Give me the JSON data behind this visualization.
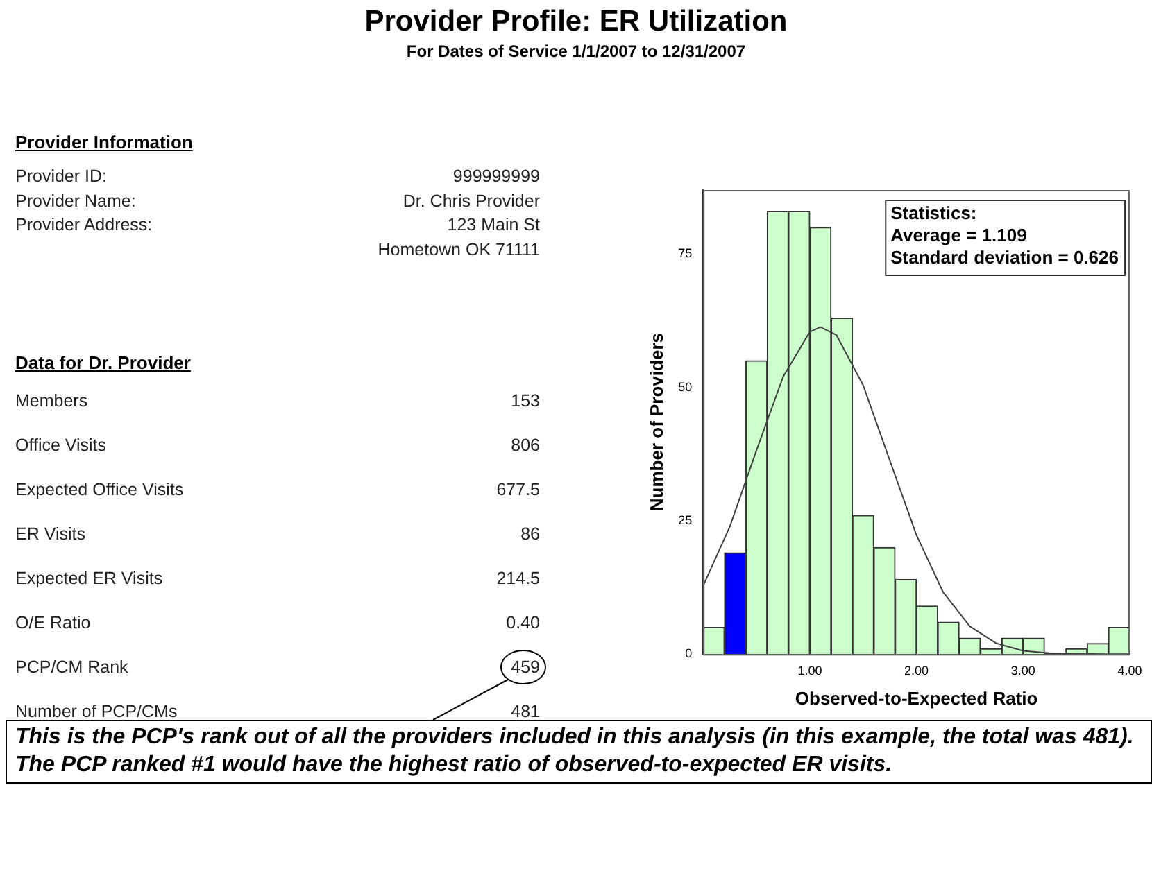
{
  "chart_data": [
    {
      "type": "other",
      "title": "Provider Profile: ER Utilization",
      "subtitle": "For Dates of Service 1/1/2007 to 12/31/2007",
      "categories": [
        null,
        null,
        null,
        null,
        "Members",
        "Office Visits",
        "Expected Office Visits",
        "ER Visits",
        "Expected ER Visits",
        "O/E Ratio",
        "PCP/CM Rank",
        "Number of PCP/CMs"
      ],
      "value_labels": [
        "999999999",
        "Dr. Chris Provider",
        "123 Main St",
        "Hometown OK 71111",
        "153",
        "806",
        "677.5",
        "86",
        "214.5",
        "0.40",
        "459",
        "481"
      ],
      "annotations": [
        "Provider Information",
        "Provider ID:",
        "Provider Name:",
        "Provider Address:",
        "Data for Dr. Provider",
        "This is the PCP's rank out of all the providers included in this analysis (in this example, the total was 481).  The PCP ranked #1 would have the highest ratio of observed-to-expected ER visits."
      ]
    },
    {
      "type": "histogram",
      "xlabel": "Observed-to-Expected Ratio",
      "ylabel": "Number of Providers",
      "bins": [
        0,
        0.2,
        0.4,
        0.6,
        0.8,
        1.0,
        1.2,
        1.4,
        1.6,
        1.8,
        2.0,
        2.2,
        2.4,
        2.6,
        2.8,
        3.0,
        3.2,
        3.4,
        3.6,
        3.8,
        4.0
      ],
      "values": [
        5,
        19,
        55,
        83,
        83,
        80,
        63,
        26,
        20,
        14,
        9,
        6,
        3,
        1,
        3,
        3,
        0,
        1,
        2,
        5
      ],
      "colors": [
        "#ccffcc",
        "#0000ff",
        "#ccffcc",
        "#ccffcc",
        "#ccffcc",
        "#ccffcc",
        "#ccffcc",
        "#ccffcc",
        "#ccffcc",
        "#ccffcc",
        "#ccffcc",
        "#ccffcc",
        "#ccffcc",
        "#ccffcc",
        "#ccffcc",
        "#ccffcc",
        "#ccffcc",
        "#ccffcc",
        "#ccffcc",
        "#ccffcc"
      ],
      "series": [
        {
          "type": "line",
          "color": "#404040",
          "x": [
            0,
            0.25,
            0.5,
            0.75,
            1.0,
            1.1,
            1.25,
            1.5,
            1.75,
            2.0,
            2.25,
            2.5,
            2.75,
            3.0,
            3.25,
            3.5,
            3.75,
            4.0
          ],
          "values": [
            12.8,
            23.9,
            38.2,
            52.0,
            60.4,
            61.3,
            59.8,
            50.4,
            36.3,
            22.3,
            11.6,
            5.2,
            2.0,
            0.6,
            0.2,
            0.1,
            0,
            0
          ]
        }
      ],
      "xlim": [
        0,
        4.0
      ],
      "xticks": [
        {
          "value": 1,
          "label": "1.00"
        },
        {
          "value": 2,
          "label": "2.00"
        },
        {
          "value": 3,
          "label": "3.00"
        },
        {
          "value": 4,
          "label": "4.00"
        }
      ],
      "ylim": [
        0,
        87
      ],
      "yticks": [
        0,
        25,
        50,
        75
      ],
      "grid": false,
      "legend": false,
      "marker": "none",
      "line_style": "solid",
      "annotations": [
        "Statistics:\nAverage = 1.109\nStandard deviation = 0.626"
      ]
    }
  ]
}
